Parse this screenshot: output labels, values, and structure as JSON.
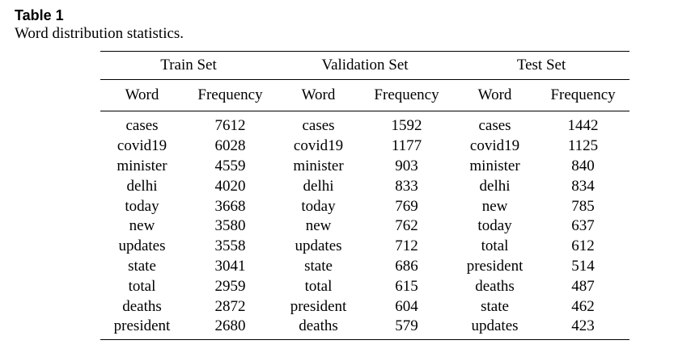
{
  "caption": {
    "label": "Table 1",
    "text": "Word distribution statistics."
  },
  "table": {
    "groups": [
      "Train Set",
      "Validation Set",
      "Test Set"
    ],
    "columns": [
      "Word",
      "Frequency",
      "Word",
      "Frequency",
      "Word",
      "Frequency"
    ],
    "rows": [
      [
        "cases",
        "7612",
        "cases",
        "1592",
        "cases",
        "1442"
      ],
      [
        "covid19",
        "6028",
        "covid19",
        "1177",
        "covid19",
        "1125"
      ],
      [
        "minister",
        "4559",
        "minister",
        "903",
        "minister",
        "840"
      ],
      [
        "delhi",
        "4020",
        "delhi",
        "833",
        "delhi",
        "834"
      ],
      [
        "today",
        "3668",
        "today",
        "769",
        "new",
        "785"
      ],
      [
        "new",
        "3580",
        "new",
        "762",
        "today",
        "637"
      ],
      [
        "updates",
        "3558",
        "updates",
        "712",
        "total",
        "612"
      ],
      [
        "state",
        "3041",
        "state",
        "686",
        "president",
        "514"
      ],
      [
        "total",
        "2959",
        "total",
        "615",
        "deaths",
        "487"
      ],
      [
        "deaths",
        "2872",
        "president",
        "604",
        "state",
        "462"
      ],
      [
        "president",
        "2680",
        "deaths",
        "579",
        "updates",
        "423"
      ]
    ]
  }
}
